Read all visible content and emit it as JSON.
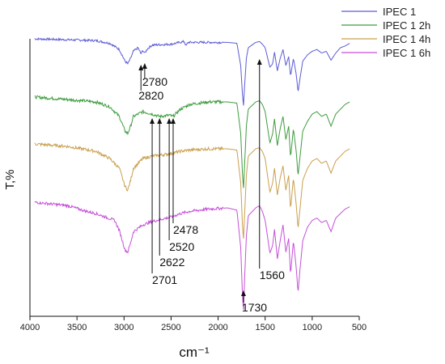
{
  "chart_data": {
    "type": "line",
    "title": "",
    "xlabel": "cm⁻¹",
    "ylabel": "T,%",
    "xlim": [
      4000,
      500
    ],
    "x_ticks": [
      "4000",
      "3500",
      "3000",
      "2500",
      "2000",
      "1500",
      "1000",
      "500"
    ],
    "legend_position": "top-right",
    "series": [
      {
        "name": "IPEC 1",
        "color": "#5b5bd6",
        "x": [
          3950,
          3600,
          3300,
          3150,
          3050,
          2990,
          2960,
          2930,
          2900,
          2850,
          2820,
          2800,
          2780,
          2750,
          2700,
          2500,
          2360,
          2340,
          2320,
          2100,
          1900,
          1800,
          1760,
          1740,
          1730,
          1720,
          1700,
          1680,
          1600,
          1560,
          1530,
          1500,
          1450,
          1420,
          1400,
          1370,
          1340,
          1310,
          1280,
          1250,
          1230,
          1200,
          1170,
          1150,
          1130,
          1100,
          1050,
          1000,
          950,
          900,
          850,
          800,
          750,
          700,
          650,
          600
        ],
        "values": [
          1.0,
          0.99,
          0.98,
          0.95,
          0.88,
          0.75,
          0.72,
          0.78,
          0.86,
          0.9,
          0.83,
          0.87,
          0.84,
          0.89,
          0.93,
          0.94,
          0.97,
          0.92,
          0.96,
          0.96,
          0.96,
          0.95,
          0.7,
          0.35,
          0.25,
          0.45,
          0.78,
          0.9,
          0.96,
          0.97,
          0.94,
          0.9,
          0.68,
          0.72,
          0.85,
          0.64,
          0.78,
          0.88,
          0.7,
          0.8,
          0.58,
          0.78,
          0.6,
          0.4,
          0.55,
          0.75,
          0.82,
          0.86,
          0.88,
          0.84,
          0.86,
          0.76,
          0.84,
          0.9,
          0.92,
          0.95
        ]
      },
      {
        "name": "IPEC 1 2h",
        "color": "#3e9c3e",
        "x": [
          3950,
          3600,
          3300,
          3150,
          3050,
          2990,
          2960,
          2930,
          2900,
          2800,
          2701,
          2622,
          2520,
          2478,
          2400,
          2300,
          2100,
          1900,
          1800,
          1760,
          1740,
          1730,
          1720,
          1700,
          1680,
          1600,
          1560,
          1530,
          1500,
          1450,
          1420,
          1400,
          1370,
          1340,
          1310,
          1280,
          1250,
          1230,
          1200,
          1170,
          1150,
          1130,
          1100,
          1050,
          1000,
          950,
          900,
          850,
          800,
          750,
          700,
          650,
          600
        ],
        "values": [
          1.0,
          0.98,
          0.96,
          0.92,
          0.84,
          0.72,
          0.7,
          0.76,
          0.84,
          0.88,
          0.86,
          0.84,
          0.85,
          0.84,
          0.9,
          0.94,
          0.96,
          0.96,
          0.95,
          0.7,
          0.34,
          0.25,
          0.42,
          0.76,
          0.9,
          0.96,
          0.97,
          0.94,
          0.88,
          0.62,
          0.7,
          0.82,
          0.6,
          0.74,
          0.84,
          0.65,
          0.76,
          0.5,
          0.74,
          0.55,
          0.35,
          0.5,
          0.72,
          0.8,
          0.86,
          0.88,
          0.84,
          0.86,
          0.76,
          0.86,
          0.9,
          0.94,
          0.96
        ]
      },
      {
        "name": "IPEC 1 4h",
        "color": "#c9a04e",
        "x": [
          3950,
          3600,
          3300,
          3150,
          3050,
          2990,
          2960,
          2930,
          2900,
          2800,
          2700,
          2600,
          2500,
          2400,
          2300,
          2100,
          1900,
          1800,
          1760,
          1740,
          1730,
          1720,
          1700,
          1680,
          1600,
          1560,
          1530,
          1500,
          1450,
          1420,
          1400,
          1370,
          1340,
          1310,
          1280,
          1250,
          1230,
          1200,
          1170,
          1150,
          1130,
          1100,
          1050,
          1000,
          950,
          900,
          850,
          800,
          750,
          700,
          650,
          600
        ],
        "values": [
          1.0,
          0.98,
          0.94,
          0.88,
          0.8,
          0.65,
          0.62,
          0.7,
          0.8,
          0.88,
          0.9,
          0.91,
          0.92,
          0.94,
          0.95,
          0.96,
          0.96,
          0.95,
          0.68,
          0.3,
          0.22,
          0.4,
          0.74,
          0.9,
          0.96,
          0.97,
          0.94,
          0.88,
          0.6,
          0.68,
          0.8,
          0.58,
          0.72,
          0.82,
          0.62,
          0.74,
          0.46,
          0.72,
          0.5,
          0.3,
          0.46,
          0.7,
          0.8,
          0.86,
          0.88,
          0.84,
          0.86,
          0.76,
          0.86,
          0.9,
          0.94,
          0.96
        ]
      },
      {
        "name": "IPEC 1 6h",
        "color": "#c550d8",
        "x": [
          3950,
          3600,
          3400,
          3300,
          3200,
          3100,
          3050,
          2990,
          2960,
          2930,
          2900,
          2800,
          2700,
          2600,
          2500,
          2400,
          2300,
          2100,
          1900,
          1800,
          1760,
          1740,
          1730,
          1720,
          1700,
          1680,
          1600,
          1560,
          1530,
          1500,
          1450,
          1420,
          1400,
          1370,
          1340,
          1310,
          1280,
          1250,
          1230,
          1200,
          1170,
          1150,
          1130,
          1100,
          1050,
          1000,
          950,
          900,
          850,
          800,
          750,
          700,
          650,
          600
        ],
        "values": [
          1.0,
          0.97,
          0.92,
          0.9,
          0.87,
          0.84,
          0.75,
          0.58,
          0.56,
          0.64,
          0.74,
          0.8,
          0.83,
          0.85,
          0.87,
          0.9,
          0.92,
          0.94,
          0.95,
          0.93,
          0.6,
          0.15,
          0.05,
          0.3,
          0.7,
          0.88,
          0.95,
          0.97,
          0.92,
          0.84,
          0.55,
          0.62,
          0.76,
          0.5,
          0.66,
          0.8,
          0.56,
          0.68,
          0.36,
          0.66,
          0.42,
          0.2,
          0.4,
          0.66,
          0.78,
          0.84,
          0.86,
          0.82,
          0.84,
          0.74,
          0.86,
          0.9,
          0.94,
          0.96
        ]
      }
    ],
    "annotations": [
      {
        "label": "2780",
        "wavenumber": 2780,
        "series": 0
      },
      {
        "label": "2820",
        "wavenumber": 2820,
        "series": 0
      },
      {
        "label": "2701",
        "wavenumber": 2701,
        "series": 1
      },
      {
        "label": "2622",
        "wavenumber": 2622,
        "series": 1
      },
      {
        "label": "2520",
        "wavenumber": 2520,
        "series": 1
      },
      {
        "label": "2478",
        "wavenumber": 2478,
        "series": 1
      },
      {
        "label": "1560",
        "wavenumber": 1560,
        "series": 0
      },
      {
        "label": "1730",
        "wavenumber": 1730,
        "series": 3
      }
    ]
  }
}
